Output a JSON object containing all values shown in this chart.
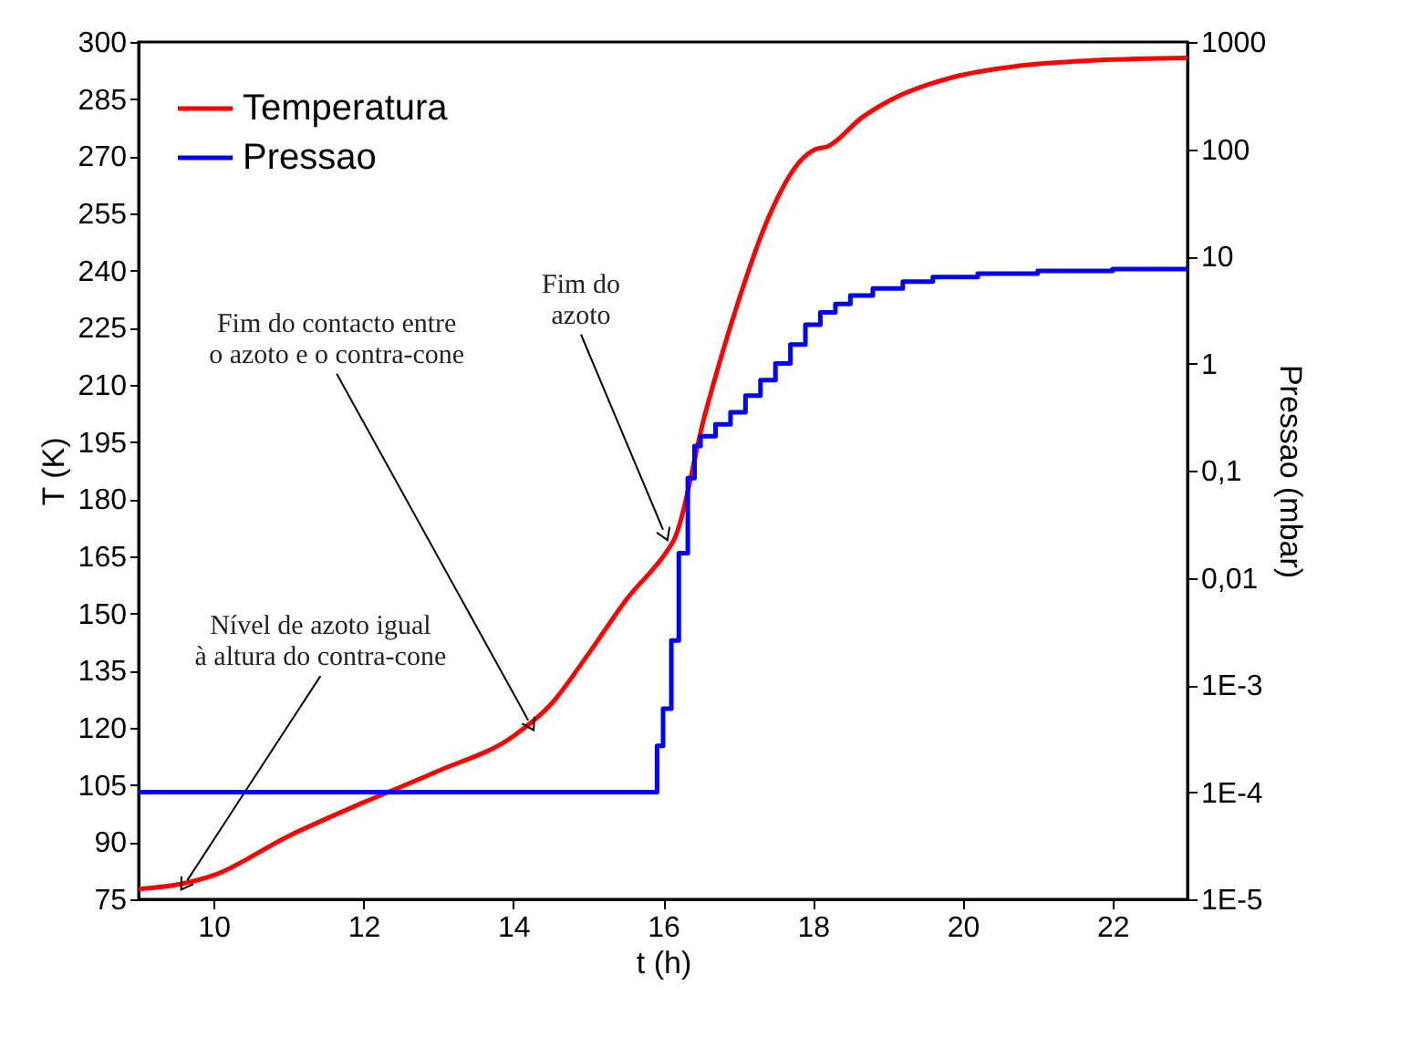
{
  "chart_data": {
    "type": "line",
    "xlabel": "t (h)",
    "ylabel": "T (K)",
    "y2label": "Pressao (mbar)",
    "xlim": [
      9,
      23
    ],
    "xticks": [
      10,
      12,
      14,
      16,
      18,
      20,
      22
    ],
    "ylim": [
      75,
      300
    ],
    "yticks": [
      75,
      90,
      105,
      120,
      135,
      150,
      165,
      180,
      195,
      210,
      225,
      240,
      255,
      270,
      285,
      300
    ],
    "y2lim": [
      1e-05,
      1000
    ],
    "log": "y2",
    "y2ticks": [
      {
        "value": 1e-05,
        "label": "1E-5"
      },
      {
        "value": 0.0001,
        "label": "1E-4"
      },
      {
        "value": 0.001,
        "label": "1E-3"
      },
      {
        "value": 0.01,
        "label": "0,01"
      },
      {
        "value": 0.1,
        "label": "0,1"
      },
      1,
      10,
      100,
      1000
    ],
    "grid": false,
    "legend": "top left",
    "series": [
      {
        "name": "Temperatura",
        "color": "#ff0000",
        "type": "line",
        "x": [
          9,
          9.56,
          10,
          11,
          12,
          13,
          14,
          14.5,
          15,
          15.5,
          16.07,
          16.14,
          16.56,
          16.98,
          17.4,
          17.82,
          18.03,
          18.2,
          18.65,
          19.07,
          19.9,
          20.74,
          21.58,
          23
        ],
        "values": [
          77.7,
          79,
          81.3,
          91.6,
          100.4,
          108.7,
          117.8,
          126.1,
          139.3,
          153.4,
          166.9,
          169.1,
          202.3,
          230.4,
          253.6,
          268.5,
          271.8,
          272.6,
          280.1,
          285.1,
          290.9,
          293.7,
          295,
          295.8
        ]
      },
      {
        "name": "Pressao",
        "color": "#0000ff",
        "type": "step",
        "axis": "y2",
        "x": [
          9,
          15.92,
          16.0,
          16.11,
          16.21,
          16.33,
          16.42,
          16.5,
          16.7,
          16.9,
          17.1,
          17.3,
          17.5,
          17.7,
          17.9,
          18.1,
          18.3,
          18.5,
          18.8,
          19.2,
          19.6,
          20.2,
          21,
          22,
          23
        ],
        "values": [
          0.0001,
          0.00027,
          0.0006,
          0.0026,
          0.017,
          0.085,
          0.17,
          0.21,
          0.27,
          0.35,
          0.5,
          0.7,
          1.0,
          1.5,
          2.3,
          3.0,
          3.6,
          4.3,
          5.0,
          5.8,
          6.4,
          6.9,
          7.3,
          7.6,
          7.8
        ]
      }
    ],
    "annotations": [
      {
        "text": "Nível de azoto igual\nà altura do contra-cone",
        "x": 9.65,
        "y": 80
      },
      {
        "text": "Fim do contacto entre\no azoto e o contra-cone",
        "x": 14.2,
        "y": 122
      },
      {
        "text": "Fim do\nazoto",
        "x": 16.0,
        "y": 172
      }
    ]
  }
}
